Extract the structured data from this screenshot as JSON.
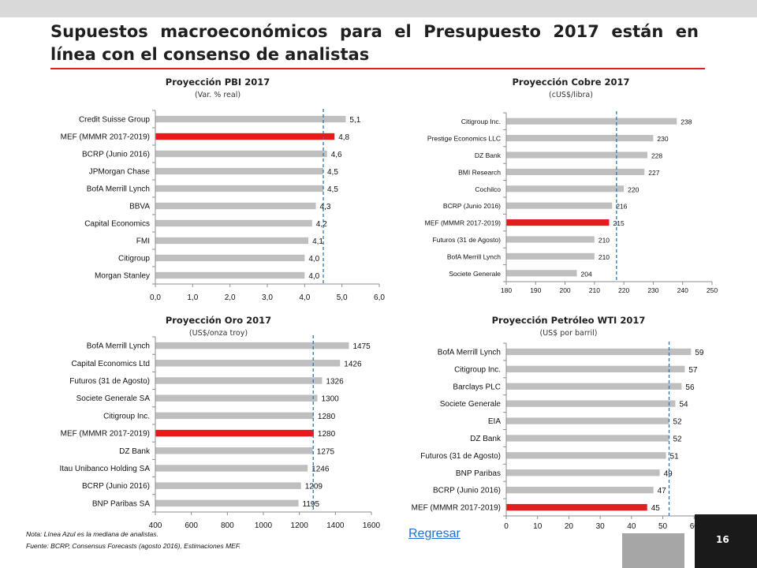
{
  "slide": {
    "title": "Supuestos macroeconómicos para el Presupuesto 2017 están en línea con el consenso de analistas",
    "note": "Nota: Línea Azul es la mediana de analistas.",
    "source": "Fuente: BCRP, Consensus Forecasts (agosto 2016), Estimaciones MEF.",
    "back_link": "Regresar",
    "page_number": "16"
  },
  "colors": {
    "bar": "#bfbfbf",
    "highlight": "#e41c1c",
    "median": "#2e75b6",
    "title_rule": "#e41c1c"
  },
  "chart_data": [
    {
      "type": "bar",
      "orientation": "horizontal",
      "title": "Proyección PBI 2017",
      "subtitle": "(Var. % real)",
      "categories": [
        "Credit Suisse Group",
        "MEF (MMMR 2017-2019)",
        "BCRP (Junio 2016)",
        "JPMorgan Chase",
        "BofA Merrill Lynch",
        "BBVA",
        "Capital Economics",
        "FMI",
        "Citigroup",
        "Morgan Stanley"
      ],
      "values": [
        5.1,
        4.8,
        4.6,
        4.5,
        4.5,
        4.3,
        4.2,
        4.1,
        4.0,
        4.0
      ],
      "value_labels": [
        "5,1",
        "4,8",
        "4,6",
        "4,5",
        "4,5",
        "4,3",
        "4,2",
        "4,1",
        "4,0",
        "4,0"
      ],
      "highlight": "MEF (MMMR 2017-2019)",
      "median": 4.5,
      "xlim": [
        0,
        6
      ],
      "ticks": [
        0,
        1,
        2,
        3,
        4,
        5,
        6
      ],
      "tick_labels": [
        "0,0",
        "1,0",
        "2,0",
        "3,0",
        "4,0",
        "5,0",
        "6,0"
      ]
    },
    {
      "type": "bar",
      "orientation": "horizontal",
      "title": "Proyección Cobre 2017",
      "subtitle": "(cUS$/libra)",
      "categories": [
        "Citigroup Inc.",
        "Prestige Economics LLC",
        "DZ Bank",
        "BMI Research",
        "Cochilco",
        "BCRP (Junio 2016)",
        "MEF (MMMR 2017-2019)",
        "Futuros (31 de Agosto)",
        "BofA Merrill Lynch",
        "Societe Generale"
      ],
      "values": [
        238,
        230,
        228,
        227,
        220,
        216,
        215,
        210,
        210,
        204
      ],
      "value_labels": [
        "238",
        "230",
        "228",
        "227",
        "220",
        "216",
        "215",
        "210",
        "210",
        "204"
      ],
      "highlight": "MEF (MMMR 2017-2019)",
      "median": 217.5,
      "xlim": [
        180,
        250
      ],
      "ticks": [
        180,
        190,
        200,
        210,
        220,
        230,
        240,
        250
      ],
      "tick_labels": [
        "180",
        "190",
        "200",
        "210",
        "220",
        "230",
        "240",
        "250"
      ]
    },
    {
      "type": "bar",
      "orientation": "horizontal",
      "title": "Proyección Oro 2017",
      "subtitle": "(US$/onza troy)",
      "categories": [
        "BofA Merrill Lynch",
        "Capital Economics Ltd",
        "Futuros (31 de Agosto)",
        "Societe Generale SA",
        "Citigroup Inc.",
        "MEF (MMMR 2017-2019)",
        "DZ Bank",
        "Itau Unibanco Holding SA",
        "BCRP (Junio 2016)",
        "BNP Paribas SA"
      ],
      "values": [
        1475,
        1426,
        1326,
        1300,
        1280,
        1280,
        1275,
        1246,
        1209,
        1195
      ],
      "value_labels": [
        "1475",
        "1426",
        "1326",
        "1300",
        "1280",
        "1280",
        "1275",
        "1246",
        "1209",
        "1195"
      ],
      "highlight": "MEF (MMMR 2017-2019)",
      "median": 1277,
      "xlim": [
        400,
        1600
      ],
      "ticks": [
        400,
        600,
        800,
        1000,
        1200,
        1400,
        1600
      ],
      "tick_labels": [
        "400",
        "600",
        "800",
        "1000",
        "1200",
        "1400",
        "1600"
      ]
    },
    {
      "type": "bar",
      "orientation": "horizontal",
      "title": "Proyección Petróleo WTI 2017",
      "subtitle": "(US$ por barril)",
      "categories": [
        "BofA Merrill Lynch",
        "Citigroup Inc.",
        "Barclays PLC",
        "Societe Generale",
        "EIA",
        "DZ Bank",
        "Futuros (31 de Agosto)",
        "BNP Paribas",
        "BCRP (Junio 2016)",
        "MEF (MMMR 2017-2019)"
      ],
      "values": [
        59,
        57,
        56,
        54,
        52,
        52,
        51,
        49,
        47,
        45
      ],
      "value_labels": [
        "59",
        "57",
        "56",
        "54",
        "52",
        "52",
        "51",
        "49",
        "47",
        "45"
      ],
      "highlight": "MEF (MMMR 2017-2019)",
      "median": 52,
      "xlim": [
        0,
        70
      ],
      "ticks": [
        0,
        10,
        20,
        30,
        40,
        50,
        60,
        70
      ],
      "tick_labels": [
        "0",
        "10",
        "20",
        "30",
        "40",
        "50",
        "60",
        "70"
      ]
    }
  ]
}
